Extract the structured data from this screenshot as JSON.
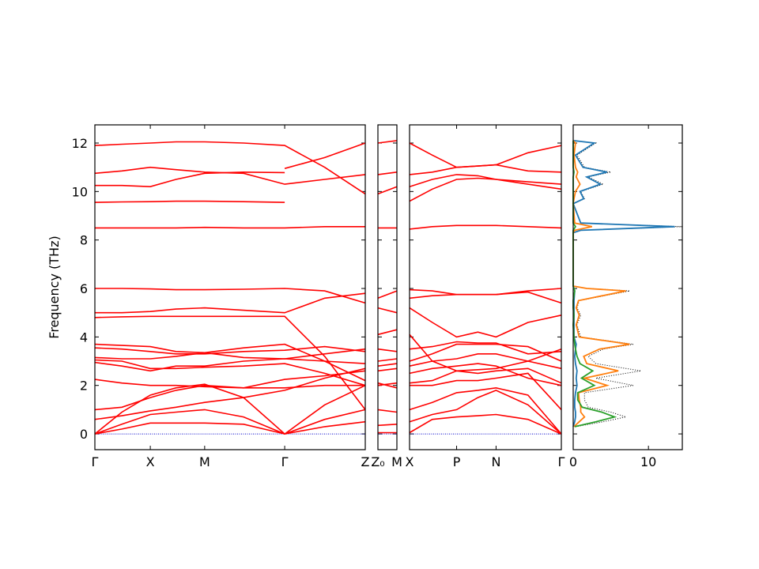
{
  "chart_data": [
    {
      "type": "line",
      "ylabel": "Frequency (THz)",
      "ylim": [
        -0.65,
        12.75
      ],
      "yticks": [
        0,
        2,
        4,
        6,
        8,
        10,
        12
      ],
      "xlim": [
        0,
        1
      ],
      "xticks": [
        {
          "value": 0,
          "label": "Γ"
        },
        {
          "value": 0.205,
          "label": "X"
        },
        {
          "value": 0.406,
          "label": "M"
        },
        {
          "value": 0.702,
          "label": "Γ"
        },
        {
          "value": 1,
          "label": "Z"
        }
      ],
      "color": "#ff0000",
      "x": [
        0,
        0.1,
        0.205,
        0.3,
        0.406,
        0.55,
        0.702,
        0.85,
        1
      ],
      "series": [
        {
          "values": [
            0,
            0.2,
            0.45,
            0.45,
            0.45,
            0.4,
            0,
            0.3,
            0.5
          ]
        },
        {
          "values": [
            0,
            0.4,
            0.8,
            0.9,
            1.0,
            0.7,
            0,
            0.6,
            1.0
          ]
        },
        {
          "values": [
            0,
            0.9,
            1.6,
            1.9,
            2.05,
            1.5,
            0,
            1.2,
            2.0
          ]
        },
        {
          "values": [
            0.6,
            0.75,
            0.95,
            1.1,
            1.3,
            1.5,
            1.8,
            2.3,
            2.7
          ]
        },
        {
          "values": [
            1.0,
            1.1,
            1.5,
            1.8,
            2.0,
            1.9,
            2.25,
            2.4,
            2.6
          ]
        },
        {
          "values": [
            2.25,
            2.1,
            2.0,
            2.0,
            1.95,
            1.9,
            1.9,
            2.0,
            2.0
          ]
        },
        {
          "values": [
            2.95,
            2.8,
            2.6,
            2.8,
            2.8,
            3.0,
            3.1,
            3.0,
            2.9
          ]
        },
        {
          "values": [
            3.05,
            3.0,
            2.7,
            2.7,
            2.75,
            2.8,
            2.9,
            2.5,
            2.0
          ]
        },
        {
          "values": [
            3.15,
            3.1,
            3.1,
            3.2,
            3.35,
            3.15,
            3.1,
            3.3,
            3.5
          ]
        },
        {
          "values": [
            3.55,
            3.5,
            3.4,
            3.3,
            3.3,
            3.4,
            3.45,
            3.6,
            3.4
          ]
        },
        {
          "values": [
            3.7,
            3.65,
            3.6,
            3.4,
            3.35,
            3.55,
            3.7,
            3.0,
            2.2
          ]
        },
        {
          "values": [
            4.8,
            4.83,
            4.85,
            4.85,
            4.85,
            4.85,
            4.85,
            3.2,
            1.0
          ]
        },
        {
          "values": [
            5.0,
            5.0,
            5.05,
            5.15,
            5.2,
            5.1,
            5.0,
            5.6,
            5.8
          ]
        },
        {
          "values": [
            6.0,
            6.0,
            5.98,
            5.95,
            5.95,
            5.97,
            6.0,
            5.9,
            5.4
          ]
        },
        {
          "values": [
            8.5,
            8.5,
            8.5,
            8.5,
            8.52,
            8.5,
            8.5,
            8.55,
            8.55
          ]
        },
        {
          "values": [
            9.55,
            9.57,
            9.58,
            9.6,
            9.6,
            9.58,
            9.55,
            null,
            null
          ]
        },
        {
          "values": [
            10.25,
            10.25,
            10.2,
            10.5,
            10.75,
            10.8,
            10.78,
            null,
            null
          ]
        },
        {
          "values": [
            10.75,
            10.85,
            11.0,
            10.9,
            10.8,
            10.75,
            10.3,
            10.5,
            10.7
          ]
        },
        {
          "values": [
            11.9,
            11.95,
            12.0,
            12.05,
            12.05,
            12.0,
            11.9,
            11.0,
            9.9
          ]
        },
        {
          "values": [
            null,
            null,
            null,
            null,
            null,
            null,
            10.95,
            11.4,
            12.0
          ]
        }
      ]
    },
    {
      "type": "line",
      "xlim": [
        0,
        1
      ],
      "xticks": [
        {
          "value": 0,
          "label": "Z₀"
        },
        {
          "value": 1,
          "label": "M"
        }
      ],
      "color": "#ff0000",
      "x": [
        0,
        1
      ],
      "series": [
        {
          "values": [
            0.05,
            0.05
          ]
        },
        {
          "values": [
            0.35,
            0.4
          ]
        },
        {
          "values": [
            1.0,
            0.9
          ]
        },
        {
          "values": [
            2.0,
            2.1
          ]
        },
        {
          "values": [
            2.1,
            1.9
          ]
        },
        {
          "values": [
            2.6,
            2.7
          ]
        },
        {
          "values": [
            2.8,
            2.9
          ]
        },
        {
          "values": [
            3.0,
            3.1
          ]
        },
        {
          "values": [
            3.5,
            3.4
          ]
        },
        {
          "values": [
            4.1,
            4.3
          ]
        },
        {
          "values": [
            5.2,
            5.0
          ]
        },
        {
          "values": [
            5.6,
            5.9
          ]
        },
        {
          "values": [
            8.5,
            8.5
          ]
        },
        {
          "values": [
            9.9,
            10.2
          ]
        },
        {
          "values": [
            10.7,
            10.8
          ]
        },
        {
          "values": [
            12.0,
            12.1
          ]
        }
      ]
    },
    {
      "type": "line",
      "xlim": [
        0,
        1
      ],
      "xticks": [
        {
          "value": 0,
          "label": "X"
        },
        {
          "value": 0.31,
          "label": "P"
        },
        {
          "value": 0.57,
          "label": "N"
        },
        {
          "value": 1,
          "label": "Γ"
        }
      ],
      "color": "#ff0000",
      "x": [
        0,
        0.15,
        0.31,
        0.45,
        0.57,
        0.78,
        1
      ],
      "series": [
        {
          "values": [
            0.05,
            0.6,
            0.7,
            0.75,
            0.8,
            0.6,
            0
          ]
        },
        {
          "values": [
            0.5,
            0.8,
            1.0,
            1.5,
            1.8,
            1.2,
            0
          ]
        },
        {
          "values": [
            1.0,
            1.3,
            1.7,
            1.8,
            1.9,
            1.6,
            0
          ]
        },
        {
          "values": [
            2.0,
            2.0,
            2.2,
            2.2,
            2.3,
            2.5,
            1.0
          ]
        },
        {
          "values": [
            2.1,
            2.2,
            2.6,
            2.5,
            2.6,
            2.7,
            2.1
          ]
        },
        {
          "values": [
            2.5,
            2.7,
            2.8,
            2.9,
            2.8,
            2.3,
            2.0
          ]
        },
        {
          "values": [
            2.8,
            3.0,
            3.1,
            3.3,
            3.3,
            3.0,
            2.7
          ]
        },
        {
          "values": [
            3.0,
            3.3,
            3.7,
            3.7,
            3.7,
            3.6,
            3.0
          ]
        },
        {
          "values": [
            3.5,
            3.6,
            3.8,
            3.75,
            3.75,
            3.3,
            3.4
          ]
        },
        {
          "values": [
            4.1,
            3.0,
            2.6,
            2.65,
            2.7,
            3.0,
            3.5
          ]
        },
        {
          "values": [
            5.2,
            4.6,
            4.0,
            4.2,
            4.0,
            4.6,
            4.9
          ]
        },
        {
          "values": [
            5.6,
            5.7,
            5.75,
            5.75,
            5.75,
            5.85,
            5.4
          ]
        },
        {
          "values": [
            5.95,
            5.9,
            5.75,
            5.75,
            5.75,
            5.9,
            6.0
          ]
        },
        {
          "values": [
            8.45,
            8.55,
            8.6,
            8.6,
            8.6,
            8.55,
            8.5
          ]
        },
        {
          "values": [
            9.6,
            10.1,
            10.5,
            10.55,
            10.5,
            10.4,
            10.3
          ]
        },
        {
          "values": [
            10.2,
            10.5,
            10.7,
            10.65,
            10.5,
            10.3,
            10.1
          ]
        },
        {
          "values": [
            10.7,
            10.8,
            11.0,
            11.05,
            11.1,
            10.85,
            10.8
          ]
        },
        {
          "values": [
            12.0,
            11.5,
            11.0,
            11.05,
            11.1,
            11.6,
            11.9
          ]
        }
      ]
    },
    {
      "type": "dos",
      "xlim": [
        0,
        14.5
      ],
      "xticks": [
        0,
        10
      ],
      "y": [
        0.3,
        0.5,
        0.7,
        0.9,
        1.1,
        1.4,
        1.7,
        2.0,
        2.3,
        2.6,
        2.9,
        3.2,
        3.5,
        3.7,
        4.0,
        4.5,
        4.9,
        5.2,
        5.5,
        5.9,
        6.0,
        6.1,
        8.3,
        8.4,
        8.55,
        8.7,
        9.5,
        9.7,
        10.0,
        10.3,
        10.6,
        10.8,
        11.0,
        11.5,
        12.0,
        12.1
      ],
      "series": [
        {
          "color": "#000000",
          "linestyle": "dotted",
          "values": [
            0.3,
            4,
            7,
            5,
            2,
            1.5,
            1.5,
            8,
            3,
            9,
            3,
            2,
            4,
            8,
            1,
            0.5,
            1,
            0.5,
            0.8,
            7.5,
            2,
            0,
            0,
            1,
            14.5,
            1,
            0,
            1.5,
            1,
            4,
            2,
            5,
            1.5,
            0.5,
            3,
            0
          ]
        },
        {
          "color": "#1f77b4",
          "values": [
            0,
            0.2,
            0.3,
            0.3,
            0.2,
            0.2,
            0.3,
            0.5,
            0.4,
            0.5,
            0.3,
            0.2,
            0.3,
            0.4,
            0.1,
            0.1,
            0.1,
            0.1,
            0.1,
            0.2,
            0.1,
            0,
            0,
            1,
            13.5,
            1,
            0,
            1.4,
            0.9,
            3.6,
            1.8,
            4.5,
            1.3,
            0.3,
            2.8,
            0
          ]
        },
        {
          "color": "#ff7f0e",
          "values": [
            0.1,
            0.8,
            1.5,
            1.0,
            1.0,
            0.8,
            0.7,
            4.5,
            1.5,
            6,
            1.8,
            1.4,
            3.5,
            7.5,
            0.8,
            0.4,
            0.8,
            0.4,
            0.7,
            7,
            1.8,
            0,
            0,
            0.2,
            2.5,
            0.2,
            0,
            0.1,
            0.3,
            0.9,
            0.4,
            0.6,
            0.3,
            0.1,
            0.3,
            0
          ]
        },
        {
          "color": "#2ca02c",
          "values": [
            0.2,
            3,
            5.5,
            3.8,
            1.2,
            0.6,
            0.6,
            2.8,
            1.1,
            2.6,
            0.9,
            0.5,
            0.3,
            0.2,
            0.1,
            0,
            0.1,
            0,
            0,
            0.2,
            0.1,
            0,
            0,
            0,
            0.3,
            0,
            0,
            0,
            0,
            0,
            0,
            0.1,
            0,
            0,
            0,
            0
          ]
        }
      ]
    }
  ]
}
